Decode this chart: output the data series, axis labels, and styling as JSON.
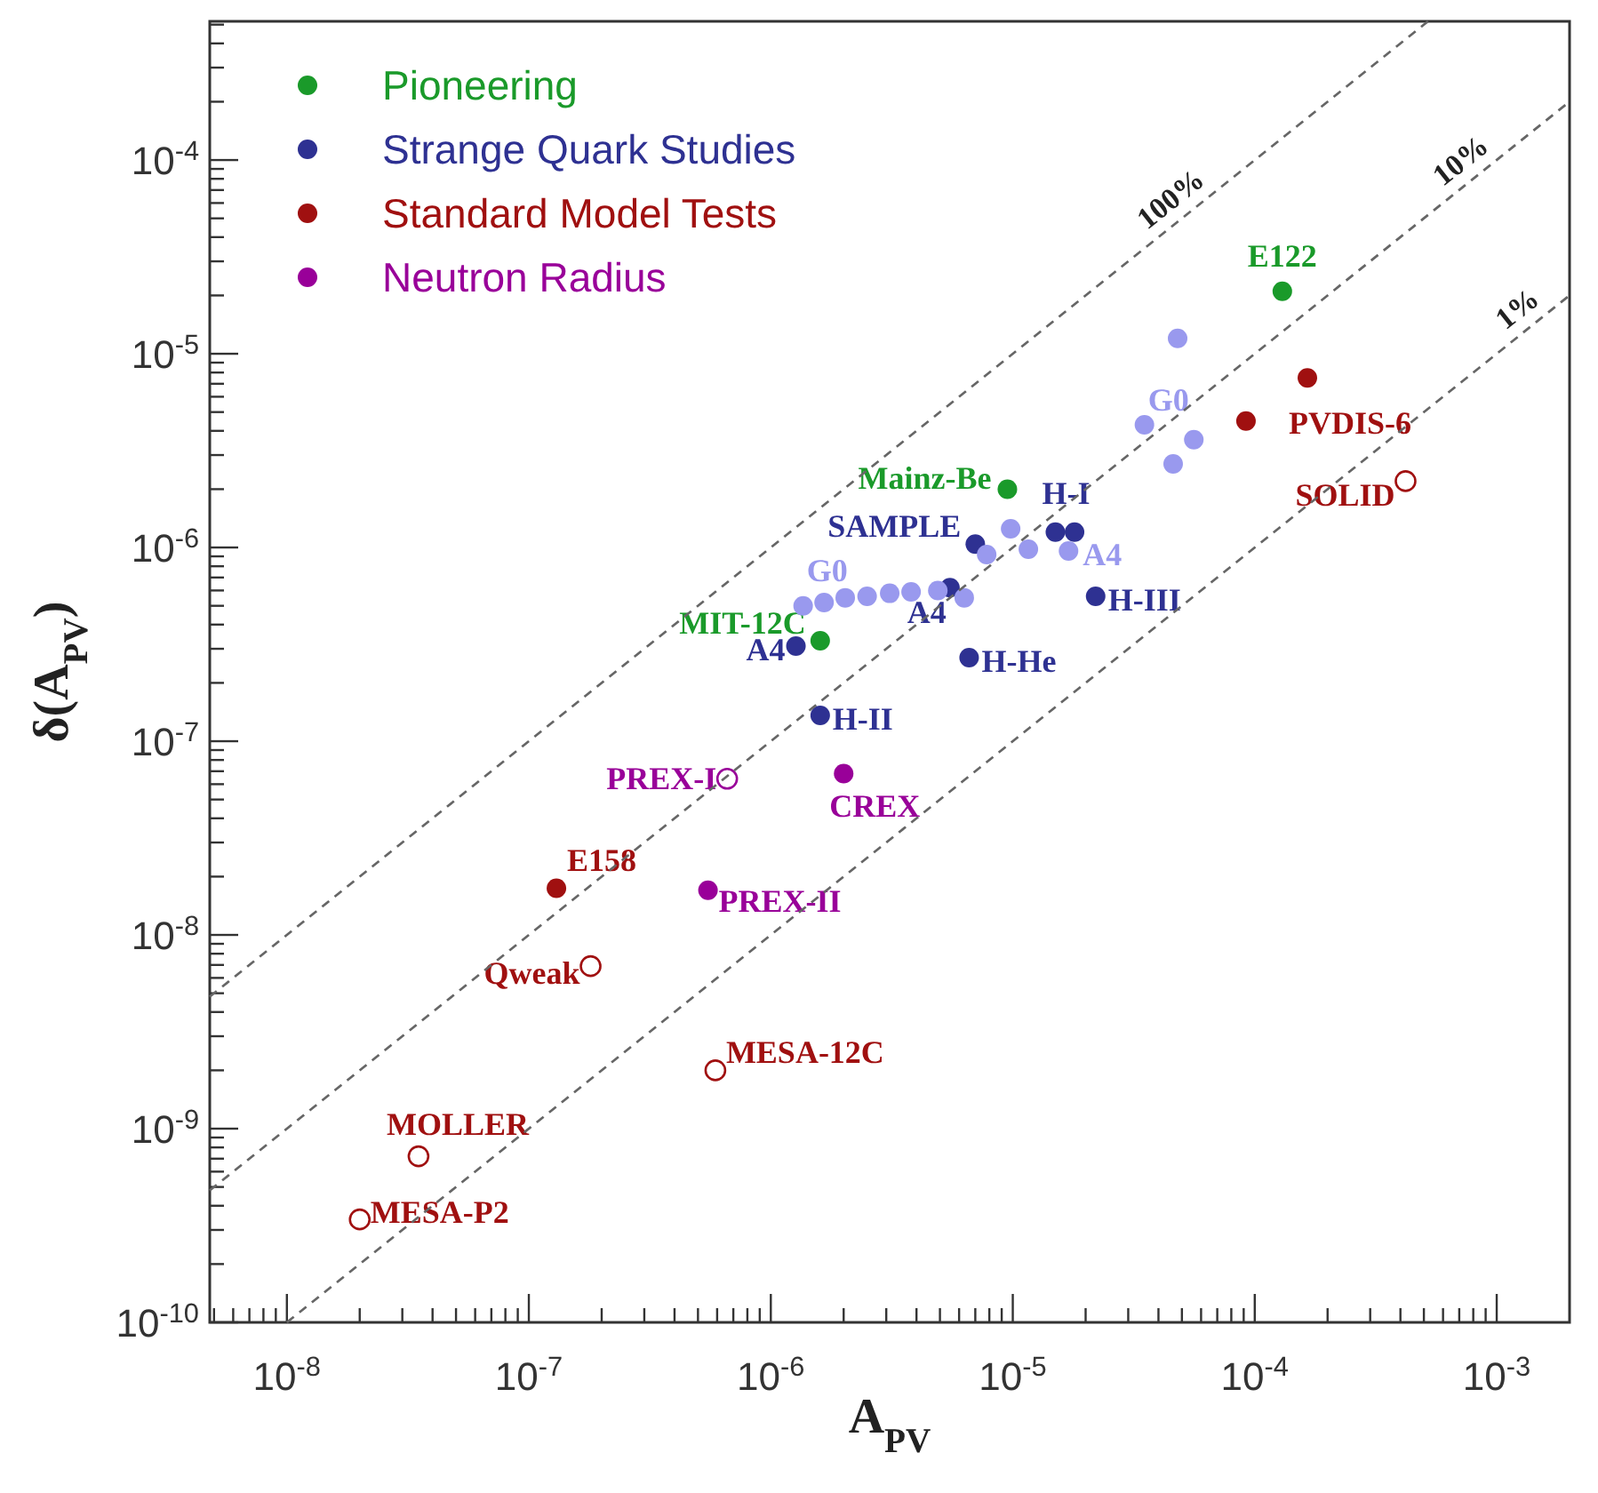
{
  "chart_data": {
    "type": "scatter",
    "xlabel": "A$_{PV}$",
    "ylabel": "δ(A$_{PV}$)",
    "log": "xy",
    "legend": "top left",
    "marker": "circle",
    "xlim": [
      4.8e-09,
      0.002
    ],
    "ylim": [
      1e-10,
      0.00052
    ],
    "xticks": [
      {
        "value": 5e-09,
        "label": null
      },
      {
        "value": 6e-09,
        "label": null
      },
      {
        "value": 7e-09,
        "label": null
      },
      {
        "value": 8e-09,
        "label": null
      },
      {
        "value": 9e-09,
        "label": null
      },
      {
        "value": 1e-08,
        "label": "10$^{-8}$"
      },
      {
        "value": 2e-08,
        "label": null
      },
      {
        "value": 3e-08,
        "label": null
      },
      {
        "value": 4e-08,
        "label": null
      },
      {
        "value": 5e-08,
        "label": null
      },
      {
        "value": 6e-08,
        "label": null
      },
      {
        "value": 7e-08,
        "label": null
      },
      {
        "value": 8e-08,
        "label": null
      },
      {
        "value": 9e-08,
        "label": null
      },
      {
        "value": 1e-07,
        "label": "10$^{-7}$"
      },
      {
        "value": 2e-07,
        "label": null
      },
      {
        "value": 3e-07,
        "label": null
      },
      {
        "value": 4e-07,
        "label": null
      },
      {
        "value": 5e-07,
        "label": null
      },
      {
        "value": 6e-07,
        "label": null
      },
      {
        "value": 7e-07,
        "label": null
      },
      {
        "value": 8e-07,
        "label": null
      },
      {
        "value": 9e-07,
        "label": null
      },
      {
        "value": 1e-06,
        "label": "10$^{-6}$"
      },
      {
        "value": 2e-06,
        "label": null
      },
      {
        "value": 3e-06,
        "label": null
      },
      {
        "value": 4e-06,
        "label": null
      },
      {
        "value": 5e-06,
        "label": null
      },
      {
        "value": 6e-06,
        "label": null
      },
      {
        "value": 7e-06,
        "label": null
      },
      {
        "value": 8e-06,
        "label": null
      },
      {
        "value": 9e-06,
        "label": null
      },
      {
        "value": 1e-05,
        "label": "10$^{-5}$"
      },
      {
        "value": 2e-05,
        "label": null
      },
      {
        "value": 3e-05,
        "label": null
      },
      {
        "value": 4e-05,
        "label": null
      },
      {
        "value": 5e-05,
        "label": null
      },
      {
        "value": 6e-05,
        "label": null
      },
      {
        "value": 7e-05,
        "label": null
      },
      {
        "value": 8e-05,
        "label": null
      },
      {
        "value": 9e-05,
        "label": null
      },
      {
        "value": 0.0001,
        "label": "10$^{-4}$"
      },
      {
        "value": 0.0002,
        "label": null
      },
      {
        "value": 0.0003,
        "label": null
      },
      {
        "value": 0.0004,
        "label": null
      },
      {
        "value": 0.0005,
        "label": null
      },
      {
        "value": 0.0006,
        "label": null
      },
      {
        "value": 0.0007,
        "label": null
      },
      {
        "value": 0.0008,
        "label": null
      },
      {
        "value": 0.0009,
        "label": null
      },
      {
        "value": 0.001,
        "label": "10$^{-3}$"
      }
    ],
    "yticks": [
      {
        "value": 1e-10,
        "label": "10$^{-10}$"
      },
      {
        "value": 2e-10,
        "label": null
      },
      {
        "value": 3e-10,
        "label": null
      },
      {
        "value": 4e-10,
        "label": null
      },
      {
        "value": 5e-10,
        "label": null
      },
      {
        "value": 6e-10,
        "label": null
      },
      {
        "value": 7e-10,
        "label": null
      },
      {
        "value": 8e-10,
        "label": null
      },
      {
        "value": 9e-10,
        "label": null
      },
      {
        "value": 1e-09,
        "label": "10$^{-9}$"
      },
      {
        "value": 2e-09,
        "label": null
      },
      {
        "value": 3e-09,
        "label": null
      },
      {
        "value": 4e-09,
        "label": null
      },
      {
        "value": 5e-09,
        "label": null
      },
      {
        "value": 6e-09,
        "label": null
      },
      {
        "value": 7e-09,
        "label": null
      },
      {
        "value": 8e-09,
        "label": null
      },
      {
        "value": 9e-09,
        "label": null
      },
      {
        "value": 1e-08,
        "label": "10$^{-8}$"
      },
      {
        "value": 2e-08,
        "label": null
      },
      {
        "value": 3e-08,
        "label": null
      },
      {
        "value": 4e-08,
        "label": null
      },
      {
        "value": 5e-08,
        "label": null
      },
      {
        "value": 6e-08,
        "label": null
      },
      {
        "value": 7e-08,
        "label": null
      },
      {
        "value": 8e-08,
        "label": null
      },
      {
        "value": 9e-08,
        "label": null
      },
      {
        "value": 1e-07,
        "label": "10$^{-7}$"
      },
      {
        "value": 2e-07,
        "label": null
      },
      {
        "value": 3e-07,
        "label": null
      },
      {
        "value": 4e-07,
        "label": null
      },
      {
        "value": 5e-07,
        "label": null
      },
      {
        "value": 6e-07,
        "label": null
      },
      {
        "value": 7e-07,
        "label": null
      },
      {
        "value": 8e-07,
        "label": null
      },
      {
        "value": 9e-07,
        "label": null
      },
      {
        "value": 1e-06,
        "label": "10$^{-6}$"
      },
      {
        "value": 2e-06,
        "label": null
      },
      {
        "value": 3e-06,
        "label": null
      },
      {
        "value": 4e-06,
        "label": null
      },
      {
        "value": 5e-06,
        "label": null
      },
      {
        "value": 6e-06,
        "label": null
      },
      {
        "value": 7e-06,
        "label": null
      },
      {
        "value": 8e-06,
        "label": null
      },
      {
        "value": 9e-06,
        "label": null
      },
      {
        "value": 1e-05,
        "label": "10$^{-5}$"
      },
      {
        "value": 2e-05,
        "label": null
      },
      {
        "value": 3e-05,
        "label": null
      },
      {
        "value": 4e-05,
        "label": null
      },
      {
        "value": 5e-05,
        "label": null
      },
      {
        "value": 6e-05,
        "label": null
      },
      {
        "value": 7e-05,
        "label": null
      },
      {
        "value": 8e-05,
        "label": null
      },
      {
        "value": 9e-05,
        "label": null
      },
      {
        "value": 0.0001,
        "label": "10$^{-4}$"
      },
      {
        "value": 0.0002,
        "label": null
      },
      {
        "value": 0.0003,
        "label": null
      },
      {
        "value": 0.0004,
        "label": null
      },
      {
        "value": 0.0005,
        "label": null
      }
    ],
    "series": [
      {
        "name": "Pioneering",
        "color": "#1a9a2a",
        "x": [
          0.00013,
          9.5e-06,
          1.6e-06
        ],
        "values": [
          2.1e-05,
          2e-06,
          3.3e-07
        ],
        "value_labels": [
          "E122",
          "Mainz-Be",
          "MIT-12C"
        ]
      },
      {
        "name": "Strange Quark Studies",
        "color": "#2e3192",
        "x": [
          7e-06,
          1.5e-05,
          1.8e-05,
          5.5e-06,
          2.2e-05,
          6.6e-06,
          1.6e-06,
          1.27e-06
        ],
        "values": [
          1.04e-06,
          1.2e-06,
          1.2e-06,
          6.2e-07,
          5.6e-07,
          2.7e-07,
          1.36e-07,
          3.1e-07
        ],
        "value_labels": [
          "SAMPLE",
          "H-I",
          null,
          "A4",
          "H-III",
          "H-He",
          "H-II",
          "A4"
        ]
      },
      {
        "color": "#9999ee",
        "x": [
          4.8e-05,
          3.5e-05,
          5.6e-05,
          4.6e-05,
          9.8e-06,
          1.16e-05,
          1.7e-05,
          7.8e-06,
          1.36e-06,
          1.66e-06,
          2.03e-06,
          2.5e-06,
          3.1e-06,
          3.8e-06,
          4.9e-06,
          6.3e-06
        ],
        "values": [
          1.2e-05,
          4.3e-06,
          3.6e-06,
          2.7e-06,
          1.25e-06,
          9.8e-07,
          9.6e-07,
          9.2e-07,
          5e-07,
          5.2e-07,
          5.5e-07,
          5.6e-07,
          5.8e-07,
          5.9e-07,
          6e-07,
          5.5e-07
        ],
        "value_labels": [
          null,
          "G0",
          null,
          null,
          null,
          null,
          "A4",
          null,
          "G0",
          null,
          null,
          null,
          null,
          null,
          null,
          null
        ]
      },
      {
        "name": "Standard Model Tests",
        "color": "#a01010",
        "x": [
          1.3e-07,
          9.2e-05,
          0.000165
        ],
        "values": [
          1.74e-08,
          4.5e-06,
          7.5e-06
        ],
        "value_labels": [
          "E158",
          "PVDIS-6",
          null
        ]
      },
      {
        "color": "#a01010",
        "marker": "circle_open",
        "x": [
          0.00042,
          1.8e-07,
          3.5e-08,
          2e-08,
          5.9e-07
        ],
        "values": [
          2.2e-06,
          6.9e-09,
          7.2e-10,
          3.4e-10,
          2e-09
        ],
        "value_labels": [
          "SOLID",
          "Qweak",
          "MOLLER",
          "MESA-P2",
          "MESA-12C"
        ]
      },
      {
        "name": "Neutron Radius",
        "color": "#990099",
        "x": [
          5.5e-07,
          2e-06
        ],
        "values": [
          1.7e-08,
          6.8e-08
        ],
        "value_labels": [
          "PREX-II",
          "CREX"
        ]
      },
      {
        "color": "#990099",
        "marker": "circle_open",
        "x": [
          6.6e-07
        ],
        "values": [
          6.4e-08
        ],
        "value_labels": [
          "PREX-I"
        ]
      },
      {
        "name": "100%",
        "type": "line",
        "color": "#666666",
        "line_style": "dashed",
        "marker": "none",
        "x": [
          4.8e-09,
          0.00052
        ],
        "values": [
          4.8e-09,
          0.00052
        ]
      },
      {
        "name": "10%",
        "type": "line",
        "color": "#666666",
        "line_style": "dashed",
        "marker": "none",
        "x": [
          4.8e-09,
          0.002
        ],
        "values": [
          4.8e-10,
          0.0002
        ]
      },
      {
        "name": "1%",
        "type": "line",
        "color": "#666666",
        "line_style": "dashed",
        "marker": "none",
        "x": [
          1e-08,
          0.002
        ],
        "values": [
          1e-10,
          2e-05
        ]
      }
    ]
  }
}
